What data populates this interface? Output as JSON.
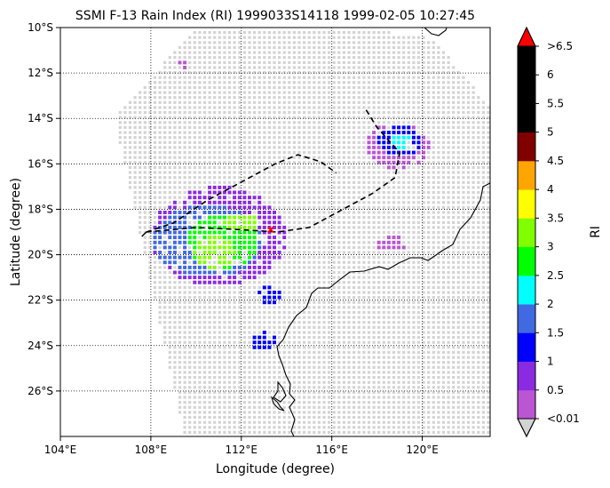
{
  "chart_data": {
    "type": "scatter",
    "title": "SSMI F-13 Rain Index (RI) 1999033S14118 1999-02-05 10:27:45",
    "xlabel": "Longitude (degree)",
    "ylabel": "Latitude (degree)",
    "xlim": [
      104,
      123
    ],
    "ylim": [
      -28,
      -10
    ],
    "x_ticks": [
      104,
      108,
      112,
      116,
      120
    ],
    "x_tick_labels": [
      "104°E",
      "108°E",
      "112°E",
      "116°E",
      "120°E"
    ],
    "y_ticks": [
      -10,
      -12,
      -14,
      -16,
      -18,
      -20,
      -22,
      -24,
      -26
    ],
    "y_tick_labels": [
      "10°S",
      "12°S",
      "14°S",
      "16°S",
      "18°S",
      "20°S",
      "22°S",
      "24°S",
      "26°S"
    ],
    "grid": true,
    "colorbar": {
      "label": "RI",
      "bounds": [
        0.01,
        0.5,
        1,
        1.5,
        2,
        2.5,
        3,
        3.5,
        4,
        4.5,
        5,
        5.5,
        6,
        6.5
      ],
      "tick_labels": [
        "<0.01",
        "0.5",
        "1",
        "1.5",
        "2",
        "2.5",
        "3",
        "3.5",
        "4",
        "4.5",
        "5",
        "5.5",
        "6",
        ">6.5"
      ],
      "colors": [
        "#ba55d3",
        "#8a2be2",
        "#0000ff",
        "#4169e1",
        "#00ffff",
        "#00ff00",
        "#7fff00",
        "#ffff00",
        "#ffa500",
        "#800000",
        "#000000",
        "#000000",
        "#000000"
      ],
      "under_color": "#d3d3d3",
      "over_color": "#ff0000"
    },
    "track": [
      [
        107.8,
        -19.0
      ],
      [
        109.0,
        -18.6
      ],
      [
        110.5,
        -17.6
      ],
      [
        112.0,
        -16.8
      ],
      [
        113.5,
        -16.0
      ],
      [
        114.5,
        -15.6
      ],
      [
        115.5,
        -15.9
      ],
      [
        116.2,
        -16.4
      ]
    ],
    "track2": [
      [
        107.8,
        -19.0
      ],
      [
        110.0,
        -18.8
      ],
      [
        112.0,
        -18.9
      ],
      [
        113.6,
        -19.0
      ],
      [
        115.0,
        -18.8
      ],
      [
        116.5,
        -18.0
      ],
      [
        117.8,
        -17.3
      ],
      [
        118.8,
        -16.6
      ],
      [
        119.0,
        -15.5
      ],
      [
        118.0,
        -14.4
      ],
      [
        117.5,
        -13.6
      ]
    ],
    "current_position": [
      113.3,
      -18.9
    ],
    "swath_corners": [
      [
        106.4,
        -14.0
      ],
      [
        110.0,
        -10.0
      ],
      [
        117.0,
        -10.0
      ],
      [
        120.5,
        -10.5
      ],
      [
        123.0,
        -13.5
      ],
      [
        123.0,
        -28.0
      ],
      [
        109.5,
        -28.0
      ]
    ],
    "rain_clusters": [
      {
        "x": 111.2,
        "y": -19.4,
        "rx": 1.6,
        "ry": 1.2,
        "ri": 2.7
      },
      {
        "x": 110.8,
        "y": -19.9,
        "rx": 0.9,
        "ry": 0.7,
        "ri": 3.2
      },
      {
        "x": 112.0,
        "y": -18.6,
        "rx": 0.8,
        "ry": 0.4,
        "ri": 3.2
      },
      {
        "x": 110.5,
        "y": -19.4,
        "rx": 2.4,
        "ry": 1.6,
        "ri": 1.7
      },
      {
        "x": 111.0,
        "y": -19.2,
        "rx": 3.0,
        "ry": 2.2,
        "ri": 0.8
      },
      {
        "x": 111.5,
        "y": -17.8,
        "rx": 1.4,
        "ry": 0.5,
        "ri": 0.3
      },
      {
        "x": 119.0,
        "y": -15.0,
        "rx": 1.0,
        "ry": 0.7,
        "ri": 1.2
      },
      {
        "x": 119.1,
        "y": -15.0,
        "rx": 0.45,
        "ry": 0.35,
        "ri": 2.2
      },
      {
        "x": 118.9,
        "y": -15.2,
        "rx": 1.4,
        "ry": 1.0,
        "ri": 0.4
      },
      {
        "x": 113.0,
        "y": -23.8,
        "rx": 0.6,
        "ry": 0.4,
        "ri": 1.2
      },
      {
        "x": 113.2,
        "y": -21.8,
        "rx": 0.6,
        "ry": 0.4,
        "ri": 1.2
      },
      {
        "x": 107.5,
        "y": -20.0,
        "rx": 0.3,
        "ry": 0.5,
        "ri": 0.3
      },
      {
        "x": 118.6,
        "y": -19.5,
        "rx": 0.7,
        "ry": 0.4,
        "ri": 0.2
      },
      {
        "x": 109.5,
        "y": -11.6,
        "rx": 0.3,
        "ry": 0.2,
        "ri": 0.3
      }
    ]
  }
}
